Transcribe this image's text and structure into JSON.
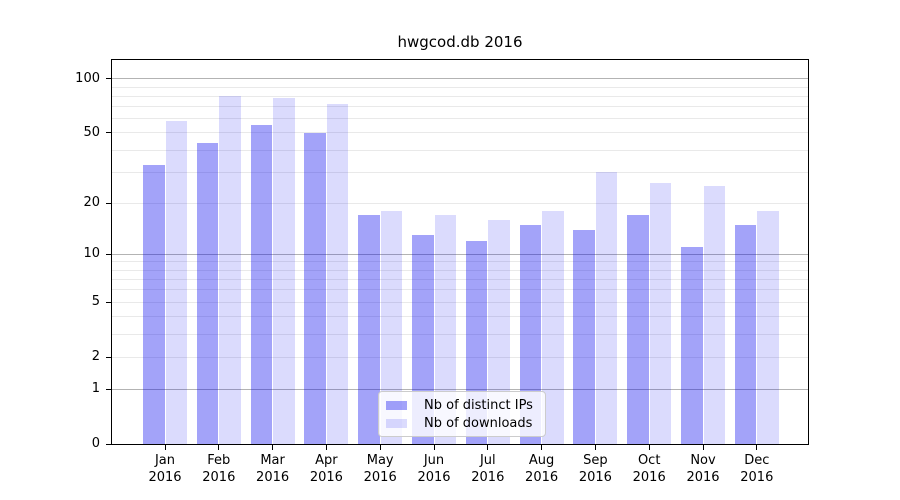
{
  "chart_data": {
    "type": "bar",
    "title": "hwgcod.db 2016",
    "categories": [
      "Jan 2016",
      "Feb 2016",
      "Mar 2016",
      "Apr 2016",
      "May 2016",
      "Jun 2016",
      "Jul 2016",
      "Aug 2016",
      "Sep 2016",
      "Oct 2016",
      "Nov 2016",
      "Dec 2016"
    ],
    "series": [
      {
        "name": "Nb of distinct IPs",
        "color": "#0000ee",
        "alpha": 0.36,
        "rendered_color": "#a3a3f7",
        "values": [
          33,
          44,
          55,
          50,
          17,
          13,
          12,
          15,
          14,
          17,
          11,
          15
        ]
      },
      {
        "name": "Nb of downloads",
        "color": "#0000ee",
        "alpha": 0.14,
        "rendered_color": "#dbdbfb",
        "values": [
          58,
          80,
          78,
          72,
          18,
          17,
          16,
          18,
          30,
          26,
          25,
          18
        ]
      }
    ],
    "xlabel": "",
    "ylabel": "",
    "yscale": "log1p",
    "ylim": [
      0,
      127
    ],
    "yticks": [
      0,
      1,
      2,
      5,
      10,
      20,
      50,
      100
    ],
    "gridlines": {
      "major": [
        1,
        10,
        100
      ],
      "minor": [
        2,
        3,
        4,
        5,
        6,
        7,
        8,
        9,
        20,
        30,
        40,
        50,
        60,
        70,
        80,
        90
      ]
    },
    "legend_position": "lower center",
    "grid": "horizontal major+minor"
  },
  "colors": {
    "grid_major": "#b3b3b3",
    "grid_minor": "#e9e9e9",
    "axis": "#000000",
    "background": "#ffffff",
    "text": "#000000"
  }
}
